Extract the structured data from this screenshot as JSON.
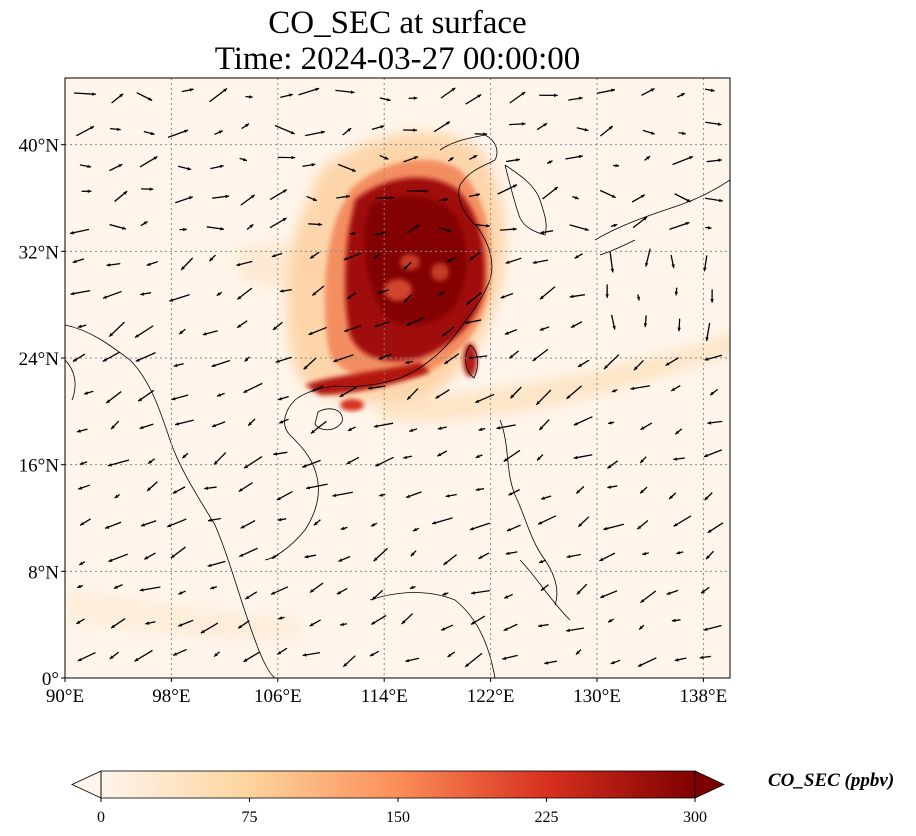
{
  "title": {
    "line1": "CO_SEC at surface",
    "line2": "Time: 2024-03-27 00:00:00"
  },
  "map": {
    "lon_range": [
      90,
      140
    ],
    "lat_range": [
      0,
      45
    ],
    "lon_ticks": [
      {
        "value": 90,
        "label": "90°E"
      },
      {
        "value": 98,
        "label": "98°E"
      },
      {
        "value": 106,
        "label": "106°E"
      },
      {
        "value": 114,
        "label": "114°E"
      },
      {
        "value": 122,
        "label": "122°E"
      },
      {
        "value": 130,
        "label": "130°E"
      },
      {
        "value": 138,
        "label": "138°E"
      }
    ],
    "lat_ticks": [
      {
        "value": 0,
        "label": "0°"
      },
      {
        "value": 8,
        "label": "8°N"
      },
      {
        "value": 16,
        "label": "16°N"
      },
      {
        "value": 24,
        "label": "24°N"
      },
      {
        "value": 32,
        "label": "32°N"
      },
      {
        "value": 40,
        "label": "40°N"
      }
    ],
    "grid": true,
    "background_color": "#fff5eb",
    "colormap": "OrRd",
    "colormap_stops": [
      "#fff5eb",
      "#fdd49e",
      "#fc8d59",
      "#d7301f",
      "#7f0000"
    ],
    "coastline_color": "#000000"
  },
  "colorbar": {
    "min": 0,
    "max": 300,
    "ticks": [
      {
        "value": 0,
        "label": "0"
      },
      {
        "value": 75,
        "label": "75"
      },
      {
        "value": 150,
        "label": "150"
      },
      {
        "value": 225,
        "label": "225"
      },
      {
        "value": 300,
        "label": "300"
      }
    ],
    "label": "CO_SEC (ppbv)",
    "extend": "both"
  }
}
